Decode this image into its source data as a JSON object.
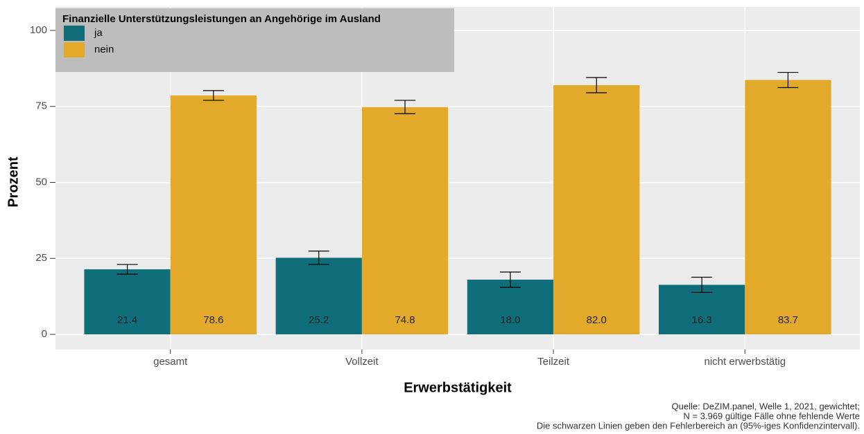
{
  "chart_data": {
    "type": "bar",
    "legend_title": "Finanzielle Unterstützungsleistungen an Angehörige im Ausland",
    "legend_position": "top-left",
    "x_label": "Erwerbstätigkeit",
    "y_label": "Prozent",
    "categories": [
      "gesamt",
      "Vollzeit",
      "Teilzeit",
      "nicht erwerbstätig"
    ],
    "series": [
      {
        "name": "ja",
        "color": "#0f6e7a",
        "values": [
          21.4,
          25.2,
          18.0,
          16.3
        ],
        "value_labels": [
          "21.4",
          "25.2",
          "18.0",
          "16.3"
        ],
        "errors": [
          1.6,
          2.2,
          2.5,
          2.5
        ]
      },
      {
        "name": "nein",
        "color": "#e3a92a",
        "values": [
          78.6,
          74.8,
          82.0,
          83.7
        ],
        "value_labels": [
          "78.6",
          "74.8",
          "82.0",
          "83.7"
        ],
        "errors": [
          1.6,
          2.2,
          2.5,
          2.5
        ]
      }
    ],
    "ylim": [
      -5,
      105
    ],
    "yticks": [
      0,
      25,
      50,
      75,
      100
    ],
    "grid": true,
    "caption": [
      "Quelle: DeZIM.panel, Welle 1, 2021, gewichtet;",
      "N = 3.969 gültige Fälle ohne fehlende Werte",
      "Die schwarzen Linien geben den Fehlerbereich an (95%-iges Konfidenzintervall)."
    ]
  }
}
